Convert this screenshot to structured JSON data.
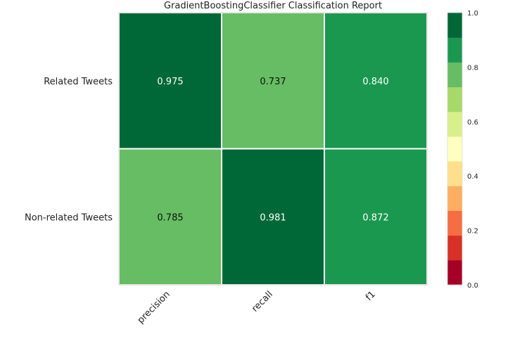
{
  "chart_data": {
    "type": "heatmap",
    "title": "GradientBoostingClassifier Classification Report",
    "xlabel": "",
    "ylabel": "",
    "columns": [
      "precision",
      "recall",
      "f1"
    ],
    "rows": [
      "Related Tweets",
      "Non-related Tweets"
    ],
    "values": [
      [
        0.975,
        0.737,
        0.84
      ],
      [
        0.785,
        0.981,
        0.872
      ]
    ],
    "cell_labels": [
      [
        "0.975",
        "0.737",
        "0.840"
      ],
      [
        "0.785",
        "0.981",
        "0.872"
      ]
    ],
    "value_range": [
      0.0,
      1.0
    ],
    "colorbar": {
      "ticks": [
        0.0,
        0.2,
        0.4,
        0.6,
        0.8,
        1.0
      ],
      "tick_labels": [
        "0.0",
        "0.2",
        "0.4",
        "0.6",
        "0.8",
        "1.0"
      ],
      "colors": [
        "#a50026",
        "#d73027",
        "#f46d43",
        "#fdae61",
        "#fee08b",
        "#ffffbf",
        "#d9ef8b",
        "#a6d96a",
        "#66bd63",
        "#1a9850",
        "#006837"
      ]
    },
    "grid": true,
    "colormap": "RdYlGn"
  }
}
